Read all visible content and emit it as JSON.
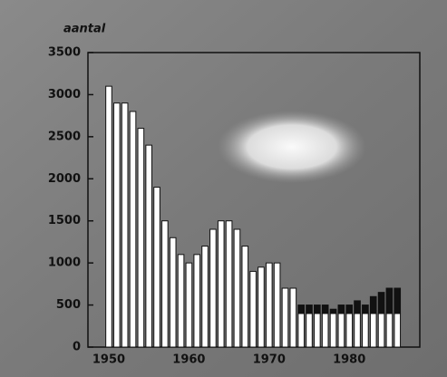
{
  "chart_data": {
    "type": "bar",
    "stacked": true,
    "y_label": "aantal",
    "x": [
      1950,
      1951,
      1952,
      1953,
      1954,
      1955,
      1956,
      1957,
      1958,
      1959,
      1960,
      1961,
      1962,
      1963,
      1964,
      1965,
      1966,
      1967,
      1968,
      1969,
      1970,
      1971,
      1972,
      1973,
      1974,
      1975,
      1976,
      1977,
      1978,
      1979,
      1980,
      1981,
      1982,
      1983,
      1984,
      1985,
      1986
    ],
    "series": [
      {
        "color": "#ffffff",
        "values": [
          3100,
          2900,
          2900,
          2800,
          2600,
          2400,
          1900,
          1500,
          1300,
          1100,
          1000,
          1100,
          1200,
          1400,
          1500,
          1500,
          1400,
          1200,
          900,
          950,
          1000,
          1000,
          700,
          700,
          400,
          400,
          400,
          400,
          400,
          400,
          400,
          400,
          400,
          400,
          400,
          400,
          400
        ]
      },
      {
        "color": "#111111",
        "values": [
          0,
          0,
          0,
          0,
          0,
          0,
          0,
          0,
          0,
          0,
          0,
          0,
          0,
          0,
          0,
          0,
          0,
          0,
          0,
          0,
          0,
          0,
          0,
          0,
          100,
          100,
          100,
          100,
          50,
          100,
          100,
          150,
          100,
          200,
          250,
          300,
          300
        ]
      }
    ],
    "xlim": [
      1947.4,
      1988.8
    ],
    "xticks": [
      1950,
      1960,
      1970,
      1980
    ],
    "ylim": [
      0,
      3500
    ],
    "yticks": [
      0,
      500,
      1000,
      1500,
      2000,
      2500,
      3000,
      3500
    ]
  }
}
